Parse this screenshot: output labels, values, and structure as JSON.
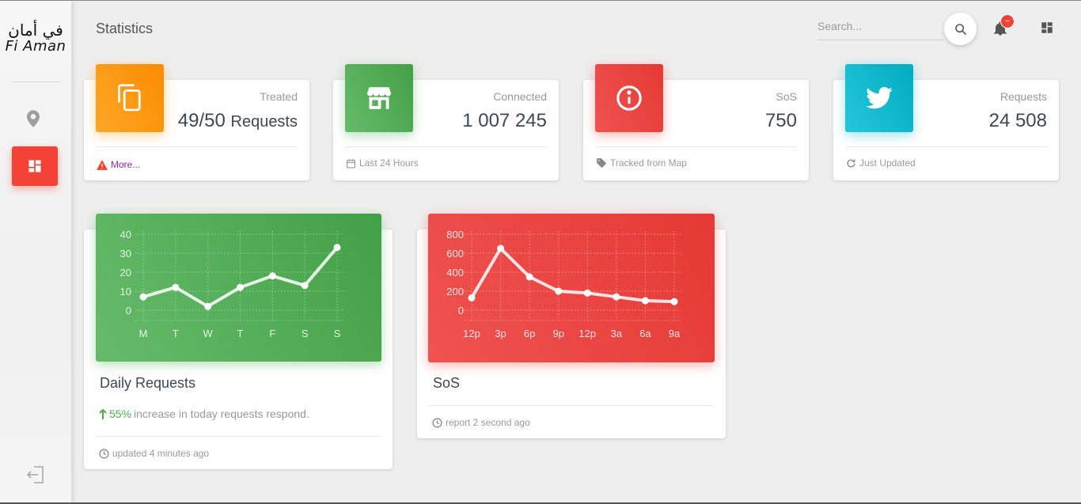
{
  "brand": {
    "name_ar": "في أمان",
    "name_en": "Fi Aman"
  },
  "header": {
    "title": "Statistics",
    "search": {
      "placeholder": "Search...",
      "value": ""
    },
    "notification_badge": "–"
  },
  "stats": [
    {
      "category": "Treated",
      "value": "49/50",
      "unit": "Requests",
      "footer": "More...",
      "footer_icon": "warning-icon",
      "color": "#fb8c00"
    },
    {
      "category": "Connected",
      "value": "1 007 245",
      "unit": "",
      "footer": "Last 24 Hours",
      "footer_icon": "calendar-icon",
      "color": "#43a047"
    },
    {
      "category": "SoS",
      "value": "750",
      "unit": "",
      "footer": "Tracked from Map",
      "footer_icon": "tag-icon",
      "color": "#e53935"
    },
    {
      "category": "Requests",
      "value": "24 508",
      "unit": "",
      "footer": "Just Updated",
      "footer_icon": "refresh-icon",
      "color": "#00acc1"
    }
  ],
  "charts": {
    "daily": {
      "title": "Daily Requests",
      "desc_pct": "55%",
      "desc_text": " increase in today requests respond.",
      "footer": "updated 4 minutes ago"
    },
    "sos": {
      "title": "SoS",
      "footer": "report 2 second ago"
    }
  },
  "chart_data": [
    {
      "type": "line",
      "categories": [
        "M",
        "T",
        "W",
        "T",
        "F",
        "S",
        "S"
      ],
      "values": [
        7,
        12,
        2,
        12,
        18,
        13,
        33
      ],
      "ylim": [
        0,
        40
      ],
      "yticks": [
        0,
        10,
        20,
        30,
        40
      ],
      "grid": true,
      "color": "#43a047"
    },
    {
      "type": "line",
      "categories": [
        "12p",
        "3p",
        "6p",
        "9p",
        "12p",
        "3a",
        "6a",
        "9a"
      ],
      "values": [
        130,
        650,
        350,
        200,
        180,
        140,
        100,
        90
      ],
      "ylim": [
        0,
        800
      ],
      "yticks": [
        0,
        200,
        400,
        600,
        800
      ],
      "grid": true,
      "color": "#e53935"
    }
  ]
}
